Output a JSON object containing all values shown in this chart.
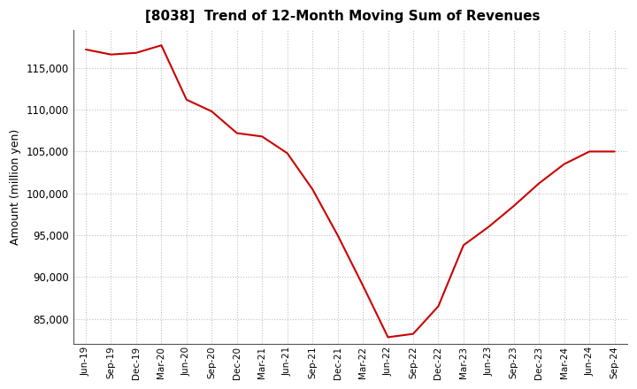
{
  "title": "[8038]  Trend of 12-Month Moving Sum of Revenues",
  "ylabel": "Amount (million yen)",
  "line_color": "#cc0000",
  "background_color": "#ffffff",
  "plot_bg_color": "#ffffff",
  "grid_color": "#b0b0b0",
  "x_labels": [
    "Jun-19",
    "Sep-19",
    "Dec-19",
    "Mar-20",
    "Jun-20",
    "Sep-20",
    "Dec-20",
    "Mar-21",
    "Jun-21",
    "Sep-21",
    "Dec-21",
    "Mar-22",
    "Jun-22",
    "Sep-22",
    "Dec-22",
    "Mar-23",
    "Jun-23",
    "Sep-23",
    "Dec-23",
    "Mar-24",
    "Jun-24",
    "Sep-24"
  ],
  "values": [
    117200,
    116600,
    116800,
    117700,
    111200,
    109800,
    107200,
    106800,
    104800,
    100500,
    95000,
    89000,
    82800,
    83200,
    86500,
    93800,
    96000,
    98500,
    101200,
    103500,
    105000,
    105000
  ],
  "ylim": [
    82000,
    119500
  ],
  "yticks": [
    85000,
    90000,
    95000,
    100000,
    105000,
    110000,
    115000
  ]
}
